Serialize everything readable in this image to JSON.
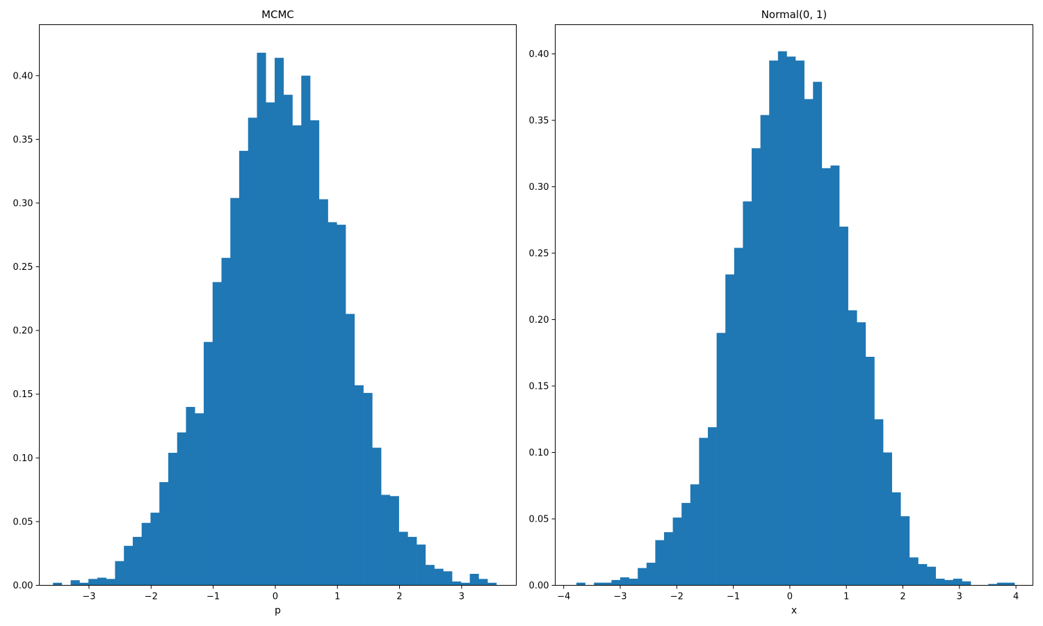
{
  "chart_data": [
    {
      "type": "bar",
      "title": "MCMC",
      "xlabel": "p",
      "ylabel": "",
      "bar_color": "#1f77b4",
      "xlim": [
        -3.8,
        3.88
      ],
      "ylim": [
        0,
        0.44
      ],
      "xticks": [
        -3,
        -2,
        -1,
        0,
        1,
        2,
        3
      ],
      "xtick_labels": [
        "−3",
        "−2",
        "−1",
        "0",
        "1",
        "2",
        "3"
      ],
      "yticks": [
        0,
        0.05,
        0.1,
        0.15,
        0.2,
        0.25,
        0.3,
        0.35,
        0.4
      ],
      "ytick_labels": [
        "0.00",
        "0.05",
        "0.10",
        "0.15",
        "0.20",
        "0.25",
        "0.30",
        "0.35",
        "0.40"
      ],
      "bin_start": -3.58,
      "bin_width": 0.1428,
      "values": [
        0.002,
        0.0,
        0.004,
        0.002,
        0.005,
        0.006,
        0.005,
        0.019,
        0.031,
        0.038,
        0.049,
        0.057,
        0.081,
        0.104,
        0.12,
        0.14,
        0.135,
        0.191,
        0.238,
        0.257,
        0.304,
        0.341,
        0.367,
        0.418,
        0.379,
        0.414,
        0.385,
        0.361,
        0.4,
        0.365,
        0.303,
        0.285,
        0.283,
        0.213,
        0.157,
        0.151,
        0.108,
        0.071,
        0.07,
        0.042,
        0.038,
        0.032,
        0.016,
        0.013,
        0.011,
        0.003,
        0.002,
        0.009,
        0.005,
        0.002
      ]
    },
    {
      "type": "bar",
      "title": "Normal(0, 1)",
      "xlabel": "x",
      "ylabel": "",
      "bar_color": "#1f77b4",
      "xlim": [
        -4.15,
        4.3
      ],
      "ylim": [
        0,
        0.422
      ],
      "xticks": [
        -4,
        -3,
        -2,
        -1,
        0,
        1,
        2,
        3,
        4
      ],
      "xtick_labels": [
        "−4",
        "−3",
        "−2",
        "−1",
        "0",
        "1",
        "2",
        "3",
        "4"
      ],
      "yticks": [
        0,
        0.05,
        0.1,
        0.15,
        0.2,
        0.25,
        0.3,
        0.35,
        0.4
      ],
      "ytick_labels": [
        "0.00",
        "0.05",
        "0.10",
        "0.15",
        "0.20",
        "0.25",
        "0.30",
        "0.35",
        "0.40"
      ],
      "bin_start": -3.93,
      "bin_width": 0.155,
      "values": [
        0.0,
        0.002,
        0.0,
        0.002,
        0.002,
        0.004,
        0.006,
        0.005,
        0.013,
        0.017,
        0.034,
        0.04,
        0.051,
        0.062,
        0.076,
        0.111,
        0.119,
        0.19,
        0.234,
        0.254,
        0.289,
        0.329,
        0.354,
        0.395,
        0.402,
        0.398,
        0.395,
        0.366,
        0.379,
        0.314,
        0.316,
        0.27,
        0.207,
        0.198,
        0.172,
        0.125,
        0.1,
        0.07,
        0.052,
        0.021,
        0.016,
        0.014,
        0.005,
        0.004,
        0.005,
        0.003,
        0.0,
        0.0,
        0.001,
        0.002,
        0.002
      ]
    }
  ]
}
